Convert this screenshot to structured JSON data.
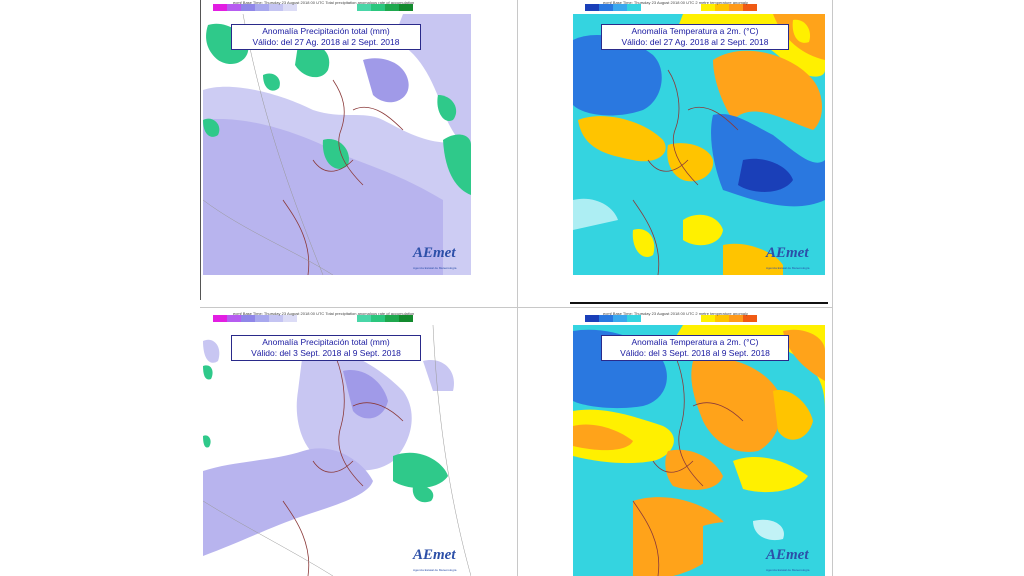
{
  "panels": [
    {
      "id": "precip-week1",
      "type": "precipitation",
      "header_text": "ecmf  Base Time: Thursday 23 August 2018 00 UTC  Total precipitation anomalous rate of accumulation",
      "title_line1": "Anomalía Precipitación total (mm)",
      "title_line2": "Válido: del 27 Ag. 2018 al 2 Sept. 2018",
      "legend_colors": [
        "#e21ee2",
        "#b65cf0",
        "#8f86e8",
        "#a8a8ee",
        "#c4c4f2",
        "#dcdcf6",
        "#ffffff",
        "#4ad6a8",
        "#2bc77e",
        "#1fa84e",
        "#138a2e"
      ]
    },
    {
      "id": "temp-week1",
      "type": "temperature",
      "header_text": "ecmf  Base Time: Thursday 23 August 2018 00 UTC  2 metre temperature anomaly",
      "title_line1": "Anomalía Temperatura a 2m. (°C)",
      "title_line2": "Válido: del 27 Ag. 2018 al 2 Sept. 2018",
      "legend_colors": [
        "#1a3fb8",
        "#2a78e0",
        "#3aa8ee",
        "#34d4e0",
        "#ffffff",
        "#fff000",
        "#ffc400",
        "#ff9a1a",
        "#f05a14"
      ]
    },
    {
      "id": "precip-week2",
      "type": "precipitation",
      "header_text": "ecmf  Base Time: Thursday 23 August 2018 00 UTC  Total precipitation anomalous rate of accumulation",
      "title_line1": "Anomalía Precipitación total (mm)",
      "title_line2": "Válido: del 3 Sept. 2018 al 9 Sept. 2018",
      "legend_colors": [
        "#e21ee2",
        "#b65cf0",
        "#8f86e8",
        "#a8a8ee",
        "#c4c4f2",
        "#dcdcf6",
        "#ffffff",
        "#4ad6a8",
        "#2bc77e",
        "#1fa84e",
        "#138a2e"
      ]
    },
    {
      "id": "temp-week2",
      "type": "temperature",
      "header_text": "ecmf  Base Time: Thursday 23 August 2018 00 UTC  2 metre temperature anomaly",
      "title_line1": "Anomalía Temperatura a 2m. (°C)",
      "title_line2": "Válido: del 3 Sept. 2018 al 9 Sept. 2018",
      "legend_colors": [
        "#1a3fb8",
        "#2a78e0",
        "#3aa8ee",
        "#34d4e0",
        "#ffffff",
        "#fff000",
        "#ffc400",
        "#ff9a1a",
        "#f05a14"
      ]
    }
  ],
  "logo": {
    "text": "AEmet",
    "subtitle": "Agencia Estatal de Meteorología"
  }
}
